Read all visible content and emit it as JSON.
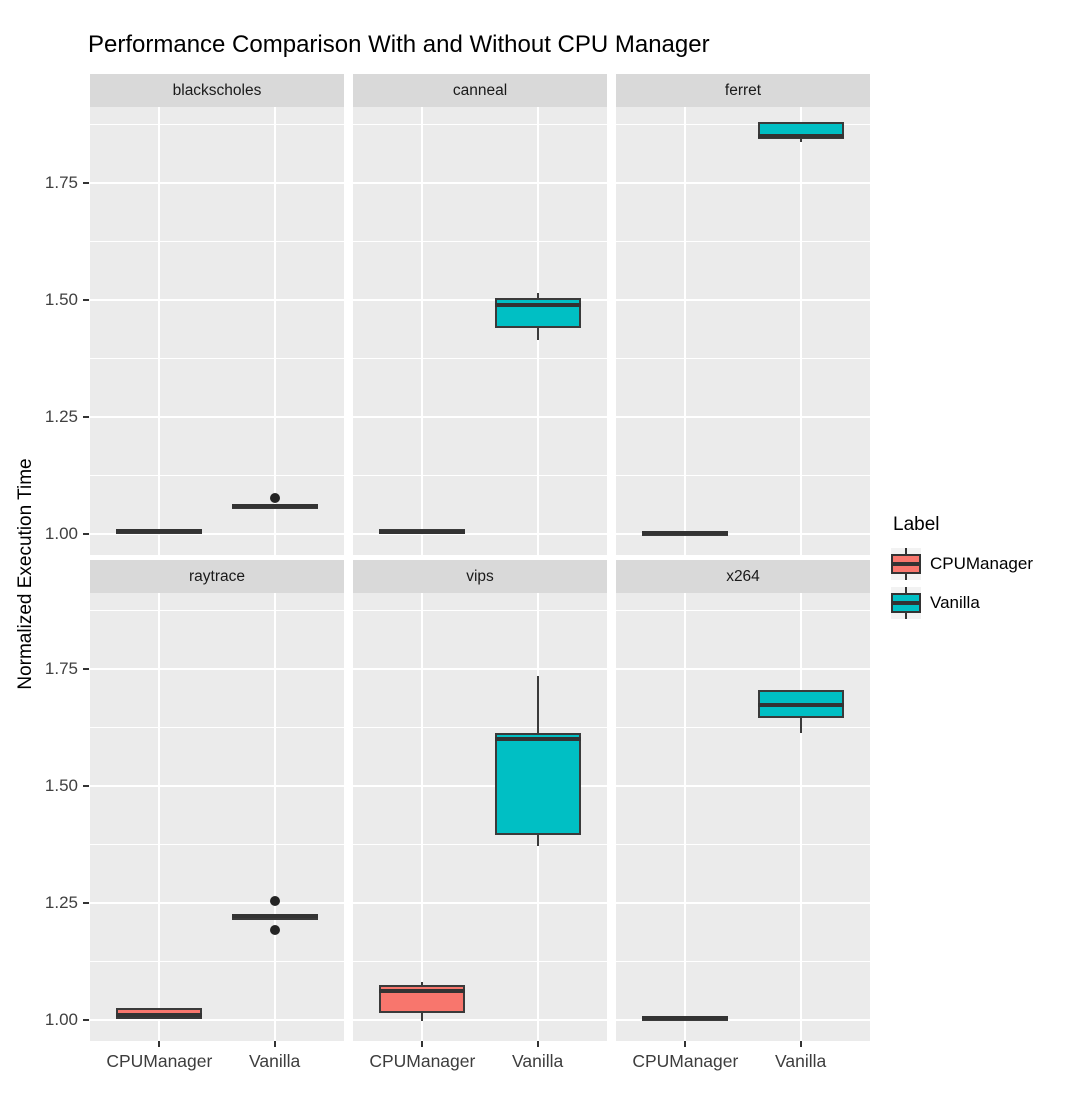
{
  "title": "Performance Comparison With and Without CPU Manager",
  "axes": {
    "y_title": "Normalized Execution Time",
    "y_tick_labels": [
      "1.00",
      "1.25",
      "1.50",
      "1.75"
    ],
    "x_tick_labels": [
      "CPUManager",
      "Vanilla"
    ]
  },
  "legend": {
    "title": "Label",
    "items": [
      {
        "label": "CPUManager",
        "color": "#F8766D"
      },
      {
        "label": "Vanilla",
        "color": "#00BFC4"
      }
    ]
  },
  "colors": {
    "panel_bg": "#EBEBEB",
    "strip_bg": "#D9D9D9",
    "gridline": "#FFFFFF",
    "box_outline": "#3A3A3A",
    "cpumanager_fill": "#F8766D",
    "vanilla_fill": "#00BFC4",
    "axis_text": "#404040",
    "title_text": "#000000"
  },
  "chart_data": {
    "type": "boxplot",
    "title": "Performance Comparison With and Without CPU Manager",
    "ylabel": "Normalized Execution Time",
    "facet_layout": [
      [
        "blackscholes",
        "canneal",
        "ferret"
      ],
      [
        "raytrace",
        "vips",
        "x264"
      ]
    ],
    "x_categories": [
      "CPUManager",
      "Vanilla"
    ],
    "y_axis": {
      "major_ticks": [
        1.0,
        1.25,
        1.5,
        1.75
      ],
      "minor_ticks": [
        1.125,
        1.375,
        1.625,
        1.875
      ],
      "range": [
        0.956,
        1.913
      ]
    },
    "legend_position": "right",
    "facets": [
      {
        "name": "blackscholes",
        "boxes": [
          {
            "group": "CPUManager",
            "whisker_low": 1.003,
            "q1": 1.003,
            "median": 1.007,
            "q3": 1.011,
            "whisker_high": 1.011,
            "outliers": []
          },
          {
            "group": "Vanilla",
            "whisker_low": 1.055,
            "q1": 1.055,
            "median": 1.06,
            "q3": 1.064,
            "whisker_high": 1.064,
            "outliers": [
              1.078
            ]
          }
        ]
      },
      {
        "name": "canneal",
        "boxes": [
          {
            "group": "CPUManager",
            "whisker_low": 1.0,
            "q1": 1.0,
            "median": 1.006,
            "q3": 1.012,
            "whisker_high": 1.012,
            "outliers": []
          },
          {
            "group": "Vanilla",
            "whisker_low": 1.415,
            "q1": 1.44,
            "median": 1.49,
            "q3": 1.505,
            "whisker_high": 1.515,
            "outliers": []
          }
        ]
      },
      {
        "name": "ferret",
        "boxes": [
          {
            "group": "CPUManager",
            "whisker_low": 1.0,
            "q1": 1.0,
            "median": 1.004,
            "q3": 1.007,
            "whisker_high": 1.007,
            "outliers": []
          },
          {
            "group": "Vanilla",
            "whisker_low": 1.838,
            "q1": 1.845,
            "median": 1.852,
            "q3": 1.882,
            "whisker_high": 1.882,
            "outliers": []
          }
        ]
      },
      {
        "name": "raytrace",
        "boxes": [
          {
            "group": "CPUManager",
            "whisker_low": 1.004,
            "q1": 1.004,
            "median": 1.012,
            "q3": 1.026,
            "whisker_high": 1.026,
            "outliers": []
          },
          {
            "group": "Vanilla",
            "whisker_low": 1.218,
            "q1": 1.218,
            "median": 1.222,
            "q3": 1.226,
            "whisker_high": 1.226,
            "outliers": [
              1.256,
              1.194
            ]
          }
        ]
      },
      {
        "name": "vips",
        "boxes": [
          {
            "group": "CPUManager",
            "whisker_low": 0.998,
            "q1": 1.015,
            "median": 1.062,
            "q3": 1.075,
            "whisker_high": 1.081,
            "outliers": []
          },
          {
            "group": "Vanilla",
            "whisker_low": 1.372,
            "q1": 1.397,
            "median": 1.601,
            "q3": 1.613,
            "whisker_high": 1.735,
            "outliers": []
          }
        ]
      },
      {
        "name": "x264",
        "boxes": [
          {
            "group": "CPUManager",
            "whisker_low": 1.002,
            "q1": 1.002,
            "median": 1.006,
            "q3": 1.01,
            "whisker_high": 1.01,
            "outliers": []
          },
          {
            "group": "Vanilla",
            "whisker_low": 1.613,
            "q1": 1.645,
            "median": 1.674,
            "q3": 1.705,
            "whisker_high": 1.705,
            "outliers": []
          }
        ]
      }
    ]
  }
}
